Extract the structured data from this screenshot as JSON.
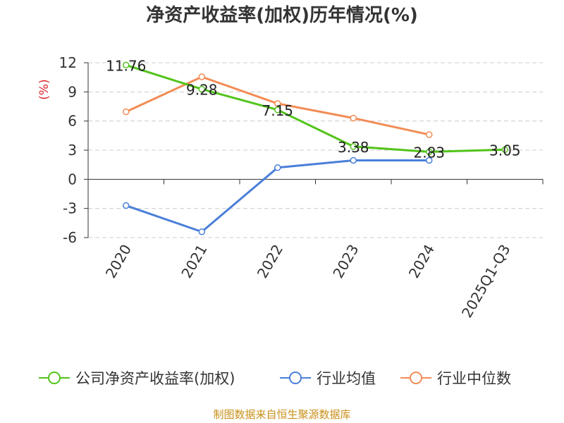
{
  "chart_data": {
    "type": "line",
    "title": "净资产收益率(加权)历年情况(%)",
    "ylabel": "(%)",
    "xlabel": "",
    "categories": [
      "2020",
      "2021",
      "2022",
      "2023",
      "2024",
      "2025Q1-Q3"
    ],
    "ylim": [
      -6,
      12
    ],
    "yticks": [
      12,
      9,
      6,
      3,
      0,
      -3,
      -6
    ],
    "grid": true,
    "legend_position": "bottom",
    "series": [
      {
        "name": "公司净资产收益率(加权)",
        "color": "#52c41a",
        "values": [
          11.76,
          9.28,
          7.15,
          3.38,
          2.83,
          3.05
        ],
        "labels": [
          "11.76",
          "9.28",
          "7.15",
          "3.38",
          "2.83",
          "3.05"
        ]
      },
      {
        "name": "行业均值",
        "color": "#4a7fd9",
        "values": [
          -2.7,
          -5.4,
          1.2,
          1.95,
          1.95,
          null
        ]
      },
      {
        "name": "行业中位数",
        "color": "#f28c55",
        "values": [
          6.95,
          10.55,
          7.8,
          6.3,
          4.6,
          null
        ]
      }
    ]
  },
  "footer": {
    "source": "制图数据来自恒生聚源数据库"
  }
}
